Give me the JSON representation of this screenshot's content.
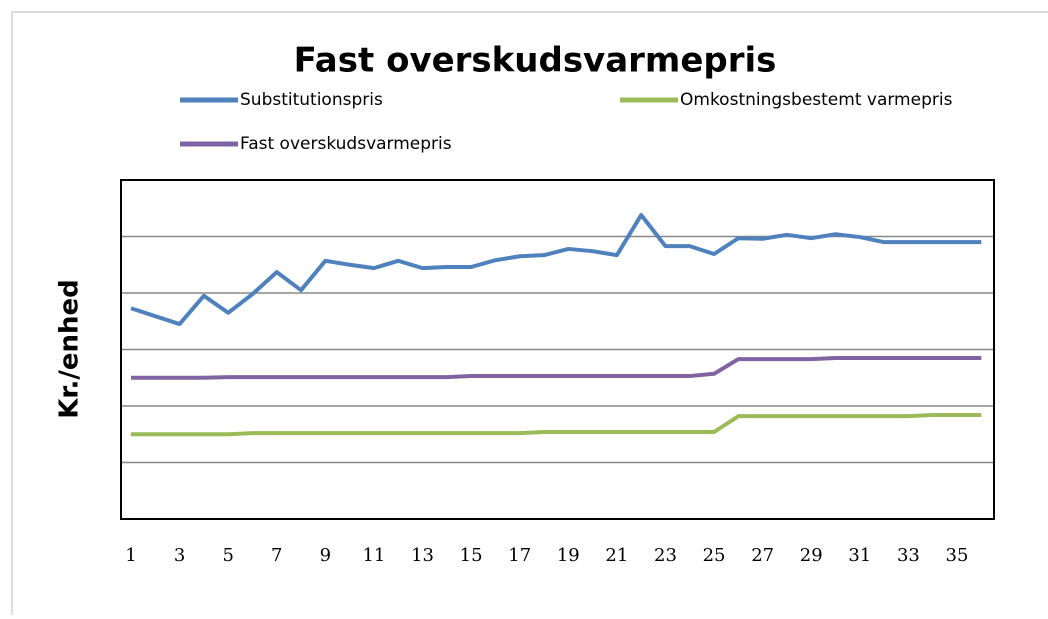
{
  "chart_data": {
    "type": "line",
    "title": "Fast overskudsvarmepris",
    "y_label": "Kr./enhed",
    "categories": [
      1,
      null,
      3,
      null,
      5,
      null,
      7,
      null,
      9,
      null,
      11,
      null,
      13,
      null,
      15,
      null,
      17,
      null,
      19,
      null,
      21,
      null,
      23,
      null,
      25,
      null,
      27,
      null,
      29,
      null,
      31,
      null,
      33,
      null,
      35,
      null
    ],
    "ylim": [
      0,
      6
    ],
    "yticks": [
      1,
      2,
      3,
      4,
      5
    ],
    "grid": true,
    "series": [
      {
        "name": "Substitutionspris",
        "color": "#4f81bd",
        "values": [
          3.73,
          3.59,
          3.45,
          3.95,
          3.65,
          3.98,
          4.37,
          4.05,
          4.57,
          4.5,
          4.44,
          4.57,
          4.44,
          4.46,
          4.46,
          4.58,
          4.65,
          4.67,
          4.78,
          4.74,
          4.67,
          5.38,
          4.83,
          4.83,
          4.69,
          4.97,
          4.96,
          5.03,
          4.97,
          5.04,
          4.99,
          4.9,
          4.9,
          4.9,
          4.9,
          4.9
        ]
      },
      {
        "name": "Omkostningsbestemt varmepris",
        "color": "#9bbb59",
        "values": [
          1.5,
          1.5,
          1.5,
          1.5,
          1.5,
          1.52,
          1.52,
          1.52,
          1.52,
          1.52,
          1.52,
          1.52,
          1.52,
          1.52,
          1.52,
          1.52,
          1.52,
          1.54,
          1.54,
          1.54,
          1.54,
          1.54,
          1.54,
          1.54,
          1.54,
          1.82,
          1.82,
          1.82,
          1.82,
          1.82,
          1.82,
          1.82,
          1.82,
          1.84,
          1.84,
          1.84
        ]
      },
      {
        "name": "Fast overskudsvarmepris",
        "color": "#8064a2",
        "values": [
          2.5,
          2.5,
          2.5,
          2.5,
          2.51,
          2.51,
          2.51,
          2.51,
          2.51,
          2.51,
          2.51,
          2.51,
          2.51,
          2.51,
          2.53,
          2.53,
          2.53,
          2.53,
          2.53,
          2.53,
          2.53,
          2.53,
          2.53,
          2.53,
          2.57,
          2.83,
          2.83,
          2.83,
          2.83,
          2.85,
          2.85,
          2.85,
          2.85,
          2.85,
          2.85,
          2.85
        ]
      }
    ]
  }
}
